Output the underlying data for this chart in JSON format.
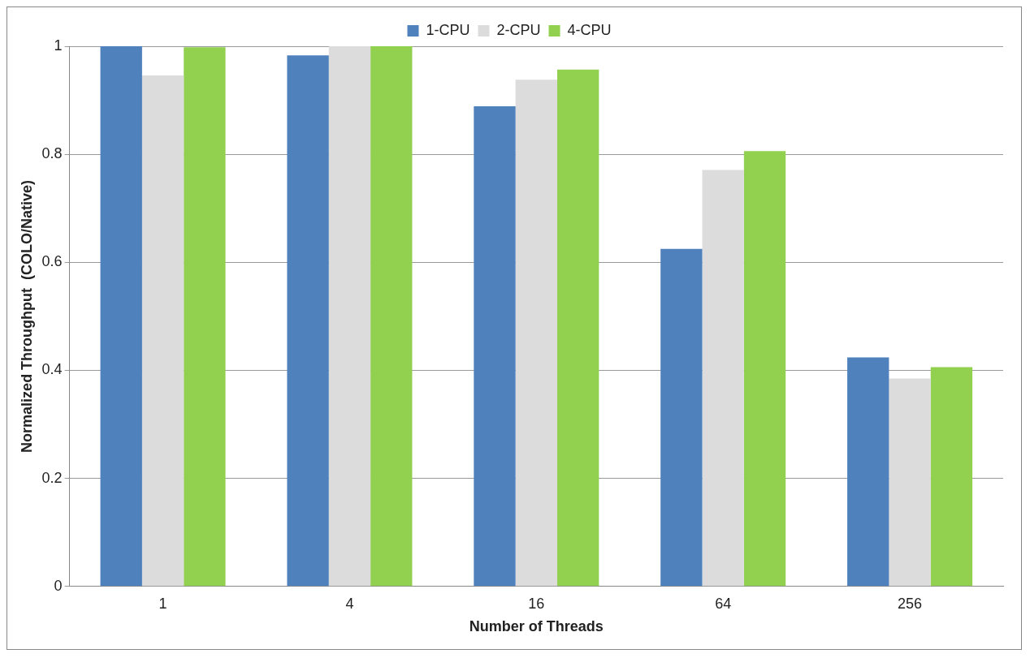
{
  "chart_data": {
    "type": "bar",
    "xlabel": "Number of Threads",
    "ylabel": "Normalized Throughput  (COLO/Native)",
    "categories": [
      "1",
      "4",
      "16",
      "64",
      "256"
    ],
    "series": [
      {
        "name": "1-CPU",
        "color": "#4f81bd",
        "values": [
          1.0,
          0.983,
          0.889,
          0.625,
          0.424
        ]
      },
      {
        "name": "2-CPU",
        "color": "#dcdcdc",
        "values": [
          0.946,
          1.0,
          0.938,
          0.771,
          0.385
        ]
      },
      {
        "name": "4-CPU",
        "color": "#92d050",
        "values": [
          0.998,
          1.0,
          0.957,
          0.806,
          0.406
        ]
      }
    ],
    "ylim": [
      0,
      1
    ],
    "yticks": [
      0,
      0.2,
      0.4,
      0.6,
      0.8,
      1
    ],
    "grid": "y",
    "legend": "top"
  }
}
